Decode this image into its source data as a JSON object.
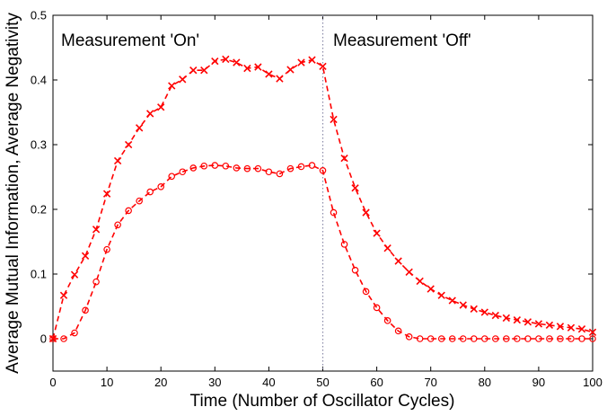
{
  "chart_data": {
    "type": "line",
    "title": "",
    "xlabel": "Time (Number of Oscillator Cycles)",
    "ylabel": "Average Mutual Information, Average Negativity",
    "xlim": [
      0,
      100
    ],
    "ylim": [
      -0.05,
      0.5
    ],
    "xticks": [
      0,
      10,
      20,
      30,
      40,
      50,
      60,
      70,
      80,
      90,
      100
    ],
    "yticks": [
      0,
      0.1,
      0.2,
      0.3,
      0.4,
      0.5
    ],
    "grid": false,
    "annotations": [
      {
        "text": "Measurement 'On'",
        "x": 2,
        "y": 0.46
      },
      {
        "text": "Measurement 'Off'",
        "x": 52,
        "y": 0.46
      }
    ],
    "vline": {
      "x": 50,
      "style": "dotted"
    },
    "series": [
      {
        "name": "Average Mutual Information",
        "marker": "x",
        "line": "dashed",
        "color": "#ff0000",
        "x": [
          0,
          2,
          4,
          6,
          8,
          10,
          12,
          14,
          16,
          18,
          20,
          22,
          24,
          26,
          28,
          30,
          32,
          34,
          36,
          38,
          40,
          42,
          44,
          46,
          48,
          50,
          52,
          54,
          56,
          58,
          60,
          62,
          64,
          66,
          68,
          70,
          72,
          74,
          76,
          78,
          80,
          82,
          84,
          86,
          88,
          90,
          92,
          94,
          96,
          98,
          100
        ],
        "values": [
          0.0,
          0.067,
          0.099,
          0.128,
          0.169,
          0.224,
          0.275,
          0.3,
          0.326,
          0.348,
          0.358,
          0.391,
          0.401,
          0.415,
          0.415,
          0.429,
          0.432,
          0.427,
          0.418,
          0.42,
          0.409,
          0.402,
          0.416,
          0.427,
          0.431,
          0.421,
          0.339,
          0.279,
          0.233,
          0.195,
          0.163,
          0.14,
          0.12,
          0.103,
          0.089,
          0.077,
          0.067,
          0.059,
          0.052,
          0.046,
          0.041,
          0.036,
          0.032,
          0.029,
          0.026,
          0.023,
          0.021,
          0.019,
          0.017,
          0.015,
          0.01
        ]
      },
      {
        "name": "Average Negativity",
        "marker": "o",
        "line": "dashed",
        "color": "#ff0000",
        "x": [
          0,
          2,
          4,
          6,
          8,
          10,
          12,
          14,
          16,
          18,
          20,
          22,
          24,
          26,
          28,
          30,
          32,
          34,
          36,
          38,
          40,
          42,
          44,
          46,
          48,
          50,
          52,
          54,
          56,
          58,
          60,
          62,
          64,
          66,
          68,
          70,
          72,
          74,
          76,
          78,
          80,
          82,
          84,
          86,
          88,
          90,
          92,
          94,
          96,
          98,
          100
        ],
        "values": [
          0.0,
          0.0,
          0.009,
          0.044,
          0.088,
          0.138,
          0.176,
          0.198,
          0.213,
          0.227,
          0.235,
          0.251,
          0.258,
          0.264,
          0.267,
          0.268,
          0.267,
          0.264,
          0.263,
          0.263,
          0.258,
          0.255,
          0.263,
          0.266,
          0.268,
          0.26,
          0.195,
          0.146,
          0.106,
          0.073,
          0.048,
          0.028,
          0.012,
          0.003,
          0.0,
          0.0,
          0.0,
          0.0,
          0.0,
          0.0,
          0.0,
          0.0,
          0.0,
          0.0,
          0.0,
          0.0,
          0.0,
          0.0,
          0.0,
          0.0,
          0.0
        ]
      }
    ]
  }
}
